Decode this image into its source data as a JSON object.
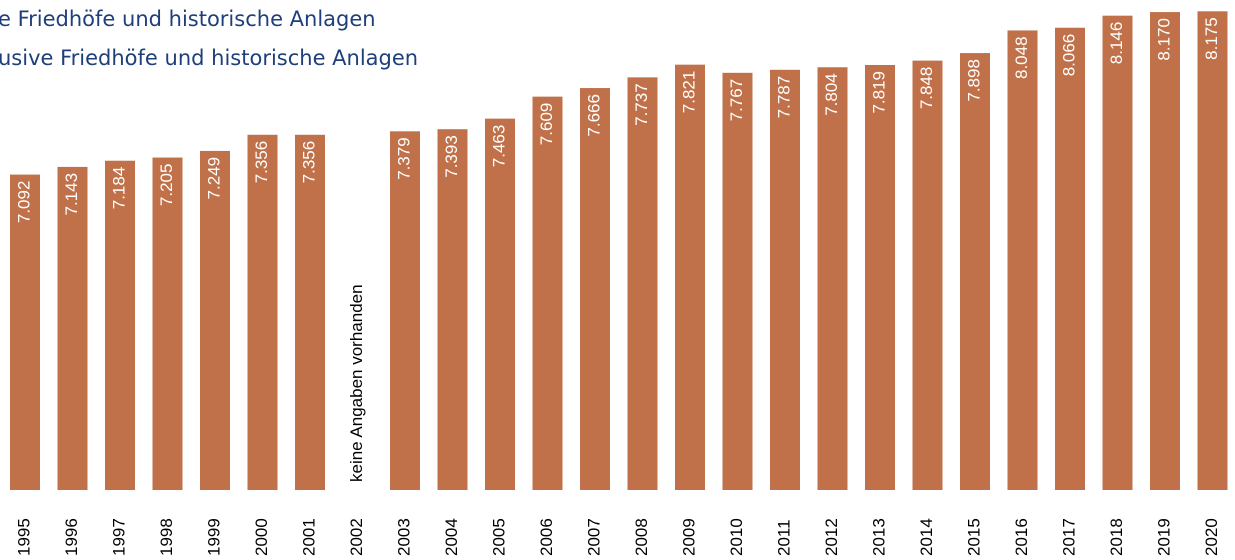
{
  "chart_data": {
    "type": "bar",
    "title": "e Friedhöfe und historische Anlagen",
    "subtitle": "usive Friedhöfe und historische Anlagen",
    "categories": [
      "1995",
      "1996",
      "1997",
      "1998",
      "1999",
      "2000",
      "2001",
      "2002",
      "2003",
      "2004",
      "2005",
      "2006",
      "2007",
      "2008",
      "2009",
      "2010",
      "2011",
      "2012",
      "2013",
      "2014",
      "2015",
      "2016",
      "2017",
      "2018",
      "2019",
      "2020"
    ],
    "values": [
      7092,
      7143,
      7184,
      7205,
      7249,
      7356,
      7356,
      null,
      7379,
      7393,
      7463,
      7609,
      7666,
      7737,
      7821,
      7767,
      7787,
      7804,
      7819,
      7848,
      7898,
      8048,
      8066,
      8146,
      8170,
      8175
    ],
    "value_labels": [
      "7.092",
      "7.143",
      "7.184",
      "7.205",
      "7.249",
      "7.356",
      "7.356",
      null,
      "7.379",
      "7.393",
      "7.463",
      "7.609",
      "7.666",
      "7.737",
      "7.821",
      "7.767",
      "7.787",
      "7.804",
      "7.819",
      "7.848",
      "7.898",
      "8.048",
      "8.066",
      "8.146",
      "8.170",
      "8.175"
    ],
    "annotation": "keine Angaben vorhanden",
    "color": "#c0714a",
    "ylim": [
      5000,
      8250
    ]
  }
}
